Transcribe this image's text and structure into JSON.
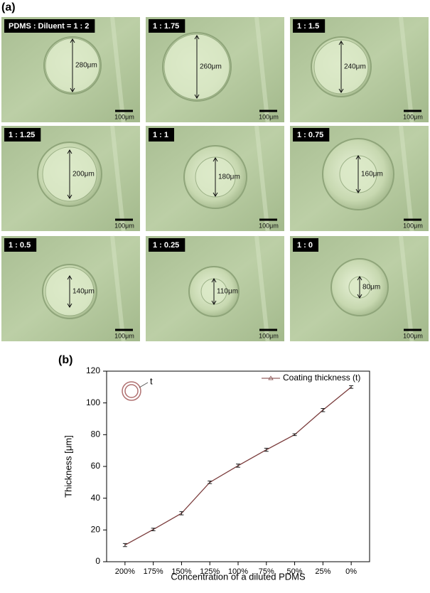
{
  "panel_a": {
    "label": "(a)",
    "images": [
      {
        "tag": "PDMS : Diluent = 1 : 2",
        "diameter": "280μm",
        "scale": "100μm"
      },
      {
        "tag": "1 : 1.75",
        "diameter": "260μm",
        "scale": "100μm"
      },
      {
        "tag": "1 : 1.5",
        "diameter": "240μm",
        "scale": "100μm"
      },
      {
        "tag": "1 : 1.25",
        "diameter": "200μm",
        "scale": "100μm"
      },
      {
        "tag": "1 : 1",
        "diameter": "180μm",
        "scale": "100μm"
      },
      {
        "tag": "1 : 0.75",
        "diameter": "160μm",
        "scale": "100μm"
      },
      {
        "tag": "1 : 0.5",
        "diameter": "140μm",
        "scale": "100μm"
      },
      {
        "tag": "1 : 0.25",
        "diameter": "110μm",
        "scale": "100μm"
      },
      {
        "tag": "1 : 0",
        "diameter": "80μm",
        "scale": "100μm"
      }
    ]
  },
  "chart_data": {
    "type": "line",
    "label": "(b)",
    "x_label": "Concentration of a diluted PDMS",
    "y_label": "Thickness [μm]",
    "annotation": "t",
    "categories": [
      "200%",
      "175%",
      "150%",
      "125%",
      "100%",
      "75%",
      "50%",
      "25%",
      "0%"
    ],
    "series": [
      {
        "name": "Coating thickness (t)",
        "color": "#7a3b3b",
        "values": [
          10.5,
          20.3,
          30.5,
          50,
          60.5,
          70.5,
          80,
          95.5,
          110
        ],
        "errors": [
          1,
          0.8,
          1,
          0.8,
          1,
          1,
          0.6,
          1,
          0.8
        ]
      }
    ],
    "ylim": [
      0,
      120
    ],
    "yticks": [
      0,
      20,
      40,
      60,
      80,
      100,
      120
    ],
    "legend": "top-right",
    "grid": false
  }
}
